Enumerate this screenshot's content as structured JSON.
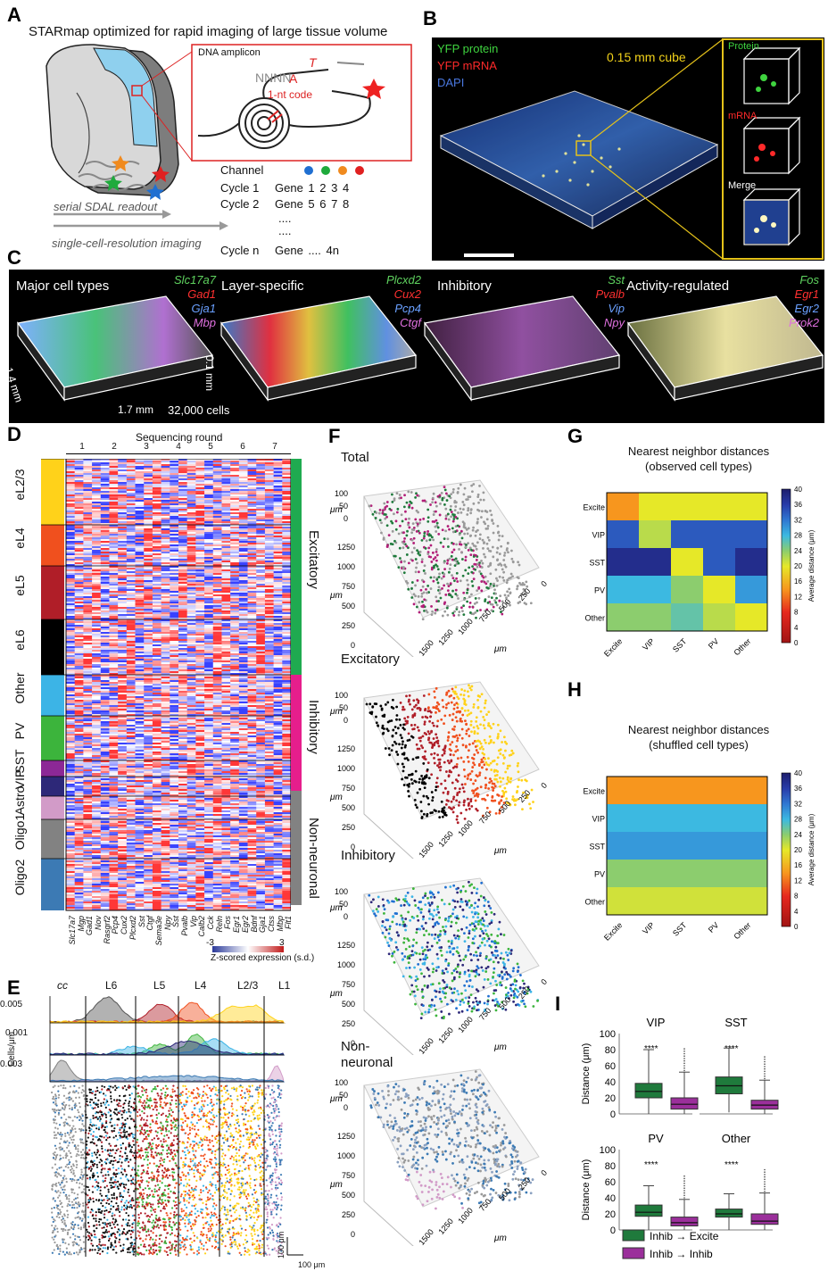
{
  "panels": {
    "A": {
      "label": "A",
      "title": "STARmap optimized for rapid imaging of large tissue volume",
      "dna_amplicon": "DNA amplicon",
      "seq": "NNNN",
      "seq_a": "A",
      "seq_t": "T",
      "nt_code": "1-nt code",
      "serial_readout": "serial SDAL readout",
      "single_cell_imaging": "single-cell-resolution imaging",
      "channel_header": "Channel",
      "rows": [
        {
          "cycle": "Cycle 1",
          "gene": "Gene 1   2   3   4"
        },
        {
          "cycle": "Cycle 2",
          "gene": "Gene 5   6   7   8"
        },
        {
          "cycle": "",
          "gene": "...."
        },
        {
          "cycle": "",
          "gene": "...."
        },
        {
          "cycle": "Cycle n",
          "gene": "Gene      ....     4n"
        }
      ],
      "channel_colors": [
        "#1f6fd1",
        "#1faa3c",
        "#f08a1e",
        "#e02020"
      ]
    },
    "B": {
      "label": "B",
      "legend": [
        "YFP protein",
        "YFP mRNA",
        "DAPI"
      ],
      "legend_colors": [
        "#3fd43f",
        "#ff2a2a",
        "#4a78e0"
      ],
      "cube_label": "0.15 mm cube",
      "insets": [
        "Protein",
        "mRNA",
        "Merge"
      ]
    },
    "C": {
      "label": "C",
      "groups": [
        {
          "title": "Major cell types",
          "genes": [
            "Slc17a7",
            "Gad1",
            "Gja1",
            "Mbp"
          ]
        },
        {
          "title": "Layer-specific",
          "genes": [
            "Plcxd2",
            "Cux2",
            "Pcp4",
            "Ctgf"
          ]
        },
        {
          "title": "Inhibitory",
          "genes": [
            "Sst",
            "Pvalb",
            "Vip",
            "Npy"
          ]
        },
        {
          "title": "Activity-regulated",
          "genes": [
            "Fos",
            "Egr1",
            "Egr2",
            "Prok2"
          ]
        }
      ],
      "gene_colors": [
        "#5fd35f",
        "#ff3030",
        "#6aa0ff",
        "#e070e0"
      ],
      "dim_x": "1.7 mm",
      "dim_y": "1.4 mm",
      "dim_z": "0.1 mm",
      "cells": "32,000 cells"
    },
    "D": {
      "label": "D",
      "round_title": "Sequencing round",
      "rounds": [
        "1",
        "2",
        "3",
        "4",
        "5",
        "6",
        "7"
      ],
      "cell_types": [
        "eL2/3",
        "eL4",
        "eL5",
        "eL6",
        "Other",
        "PV",
        "SST",
        "VIP",
        "Astro",
        "Oligo1",
        "Oligo2"
      ],
      "cell_type_colors": [
        "#ffd21a",
        "#f0501e",
        "#b01e28",
        "#000000",
        "#3cb4e6",
        "#3cb43c",
        "#8c2896",
        "#2d2878",
        "#d29bc8",
        "#828282",
        "#3c7ab4"
      ],
      "classes": [
        "Excitatory",
        "Inhibitory",
        "Non-neuronal"
      ],
      "class_colors": [
        "#1faa50",
        "#e61e8c",
        "#828282"
      ],
      "genes": [
        "Slc17a7",
        "Mgp",
        "Gad1",
        "Nov",
        "Rasgrf2",
        "Pcp4",
        "Cux2",
        "Plcxd2",
        "Sst",
        "Ctgf",
        "Sema3e",
        "Npy",
        "Sst",
        "Pvalb",
        "Vip",
        "Calb2",
        "Cck",
        "Reln",
        "Fos",
        "Egr1",
        "Egr2",
        "Bdnf",
        "Gja1",
        "Ctss",
        "Mbp",
        "Flt1"
      ],
      "cbar_min": "-3",
      "cbar_max": "3",
      "cbar_label": "Z-scored expression (s.d.)"
    },
    "E": {
      "label": "E",
      "layers": [
        "cc",
        "L6",
        "L5",
        "L4",
        "L2/3",
        "L1"
      ],
      "yticks": [
        "0.005",
        "0.001",
        "0.003"
      ],
      "ylabel": "Cells/μm",
      "scale_v": "100 μm",
      "scale_h": "100 μm"
    },
    "F": {
      "label": "F",
      "plots": [
        "Total",
        "Excitatory",
        "Inhibitory",
        "Non-\nneuronal"
      ],
      "z_ticks": [
        "100",
        "50",
        "0"
      ],
      "y_ticks": [
        "1250",
        "1000",
        "750",
        "500",
        "250",
        "0"
      ],
      "x_ticks": [
        "1500",
        "1250",
        "1000",
        "750",
        "500",
        "250",
        "0"
      ],
      "unit": "μm"
    },
    "G": {
      "label": "G",
      "title": "Nearest neighbor distances",
      "subtitle": "(observed cell types)",
      "types": [
        "Excite",
        "VIP",
        "SST",
        "PV",
        "Other"
      ],
      "colorbar_ticks": [
        "40",
        "36",
        "32",
        "28",
        "24",
        "20",
        "16",
        "12",
        "8",
        "4",
        "0"
      ],
      "colorbar_label": "Average distance (μm)",
      "matrix": [
        [
          14,
          20,
          20,
          20,
          20
        ],
        [
          34,
          22,
          34,
          34,
          34
        ],
        [
          38,
          38,
          20,
          34,
          38
        ],
        [
          28,
          28,
          24,
          20,
          30
        ],
        [
          24,
          24,
          26,
          22,
          20
        ]
      ]
    },
    "H": {
      "label": "H",
      "title": "Nearest neighbor distances",
      "subtitle": "(shuffled cell types)",
      "types": [
        "Excite",
        "VIP",
        "SST",
        "PV",
        "Other"
      ],
      "colorbar_ticks": [
        "40",
        "36",
        "32",
        "28",
        "24",
        "20",
        "16",
        "12",
        "8",
        "4",
        "0"
      ],
      "colorbar_label": "Average distance (μm)",
      "row_values": [
        14,
        28,
        30,
        24,
        21
      ]
    },
    "I": {
      "label": "I",
      "ylabel": "Distance (μm)",
      "yticks": [
        "100",
        "80",
        "60",
        "40",
        "20",
        "0"
      ],
      "plots": [
        "VIP",
        "SST",
        "PV",
        "Other"
      ],
      "signif": "****",
      "legend": [
        "Inhib → Excite",
        "Inhib → Inhib"
      ],
      "colors": [
        "#1f7a3c",
        "#9b2f9b"
      ]
    }
  },
  "chart_data": [
    {
      "type": "heatmap",
      "title": "Nearest neighbor distances",
      "subtitle": "(observed cell types)",
      "x": [
        "Excite",
        "VIP",
        "SST",
        "PV",
        "Other"
      ],
      "y": [
        "Excite",
        "VIP",
        "SST",
        "PV",
        "Other"
      ],
      "values": [
        [
          14,
          20,
          20,
          20,
          20
        ],
        [
          34,
          22,
          34,
          34,
          34
        ],
        [
          38,
          38,
          20,
          34,
          38
        ],
        [
          28,
          28,
          24,
          20,
          30
        ],
        [
          24,
          24,
          26,
          22,
          20
        ]
      ],
      "zlim": [
        0,
        40
      ],
      "zlabel": "Average distance (μm)"
    },
    {
      "type": "heatmap",
      "title": "Nearest neighbor distances",
      "subtitle": "(shuffled cell types)",
      "x": [
        "Excite",
        "VIP",
        "SST",
        "PV",
        "Other"
      ],
      "y": [
        "Excite",
        "VIP",
        "SST",
        "PV",
        "Other"
      ],
      "values": [
        [
          14,
          14,
          14,
          14,
          14
        ],
        [
          28,
          28,
          28,
          28,
          28
        ],
        [
          30,
          30,
          30,
          30,
          30
        ],
        [
          24,
          24,
          24,
          24,
          24
        ],
        [
          21,
          21,
          21,
          21,
          21
        ]
      ],
      "zlim": [
        0,
        40
      ],
      "zlabel": "Average distance (μm)"
    },
    {
      "type": "box",
      "ylabel": "Distance (μm)",
      "ylim": [
        0,
        100
      ],
      "groups": [
        "VIP",
        "SST",
        "PV",
        "Other"
      ],
      "series": [
        {
          "name": "Inhib → Excite",
          "stats": [
            {
              "min": 0,
              "q1": 20,
              "median": 28,
              "q3": 38,
              "max": 80
            },
            {
              "min": 2,
              "q1": 25,
              "median": 35,
              "q3": 46,
              "max": 82
            },
            {
              "min": 0,
              "q1": 17,
              "median": 22,
              "q3": 31,
              "max": 55
            },
            {
              "min": 0,
              "q1": 16,
              "median": 20,
              "q3": 26,
              "max": 45
            }
          ]
        },
        {
          "name": "Inhib → Inhib",
          "stats": [
            {
              "min": 0,
              "q1": 6,
              "median": 12,
              "q3": 20,
              "max": 52
            },
            {
              "min": 0,
              "q1": 6,
              "median": 11,
              "q3": 17,
              "max": 42
            },
            {
              "min": 0,
              "q1": 5,
              "median": 9,
              "q3": 16,
              "max": 38
            },
            {
              "min": 0,
              "q1": 7,
              "median": 11,
              "q3": 20,
              "max": 46
            }
          ]
        }
      ],
      "significance": "****"
    }
  ]
}
